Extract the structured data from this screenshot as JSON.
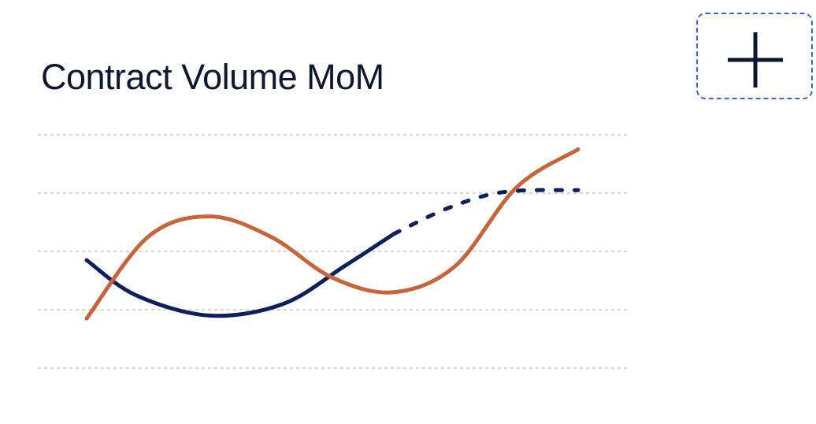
{
  "header": {
    "title": "Contract Volume MoM"
  },
  "toolbar": {
    "add_icon": "plus-icon"
  },
  "colors": {
    "navy": "#0f1f5c",
    "orange": "#c8643a",
    "gridline": "#c9c9c9",
    "button_border": "#3f62d6",
    "plus": "#0e1630"
  },
  "chart_data": {
    "type": "line",
    "title": "Contract Volume MoM",
    "xlabel": "",
    "ylabel": "",
    "grid": true,
    "x_tick_labels": false,
    "y_tick_labels": false,
    "xlim": [
      0,
      8
    ],
    "ylim": [
      0,
      4
    ],
    "series": [
      {
        "color": "#0f1f5c",
        "style": "solid",
        "x": [
          0,
          0.8,
          2.0,
          3.2,
          4.2,
          5.0
        ],
        "y": [
          1.85,
          1.25,
          0.9,
          1.1,
          1.75,
          2.3
        ]
      },
      {
        "color": "#0f1f5c",
        "style": "dashed",
        "x": [
          5.0,
          5.9,
          6.8,
          8.0
        ],
        "y": [
          2.3,
          2.75,
          3.02,
          3.05
        ]
      },
      {
        "color": "#c8643a",
        "style": "solid",
        "x": [
          0,
          1.0,
          2.0,
          3.0,
          4.0,
          5.0,
          6.0,
          7.0,
          8.0
        ],
        "y": [
          0.85,
          2.25,
          2.6,
          2.25,
          1.55,
          1.3,
          1.75,
          3.1,
          3.75
        ]
      }
    ]
  }
}
